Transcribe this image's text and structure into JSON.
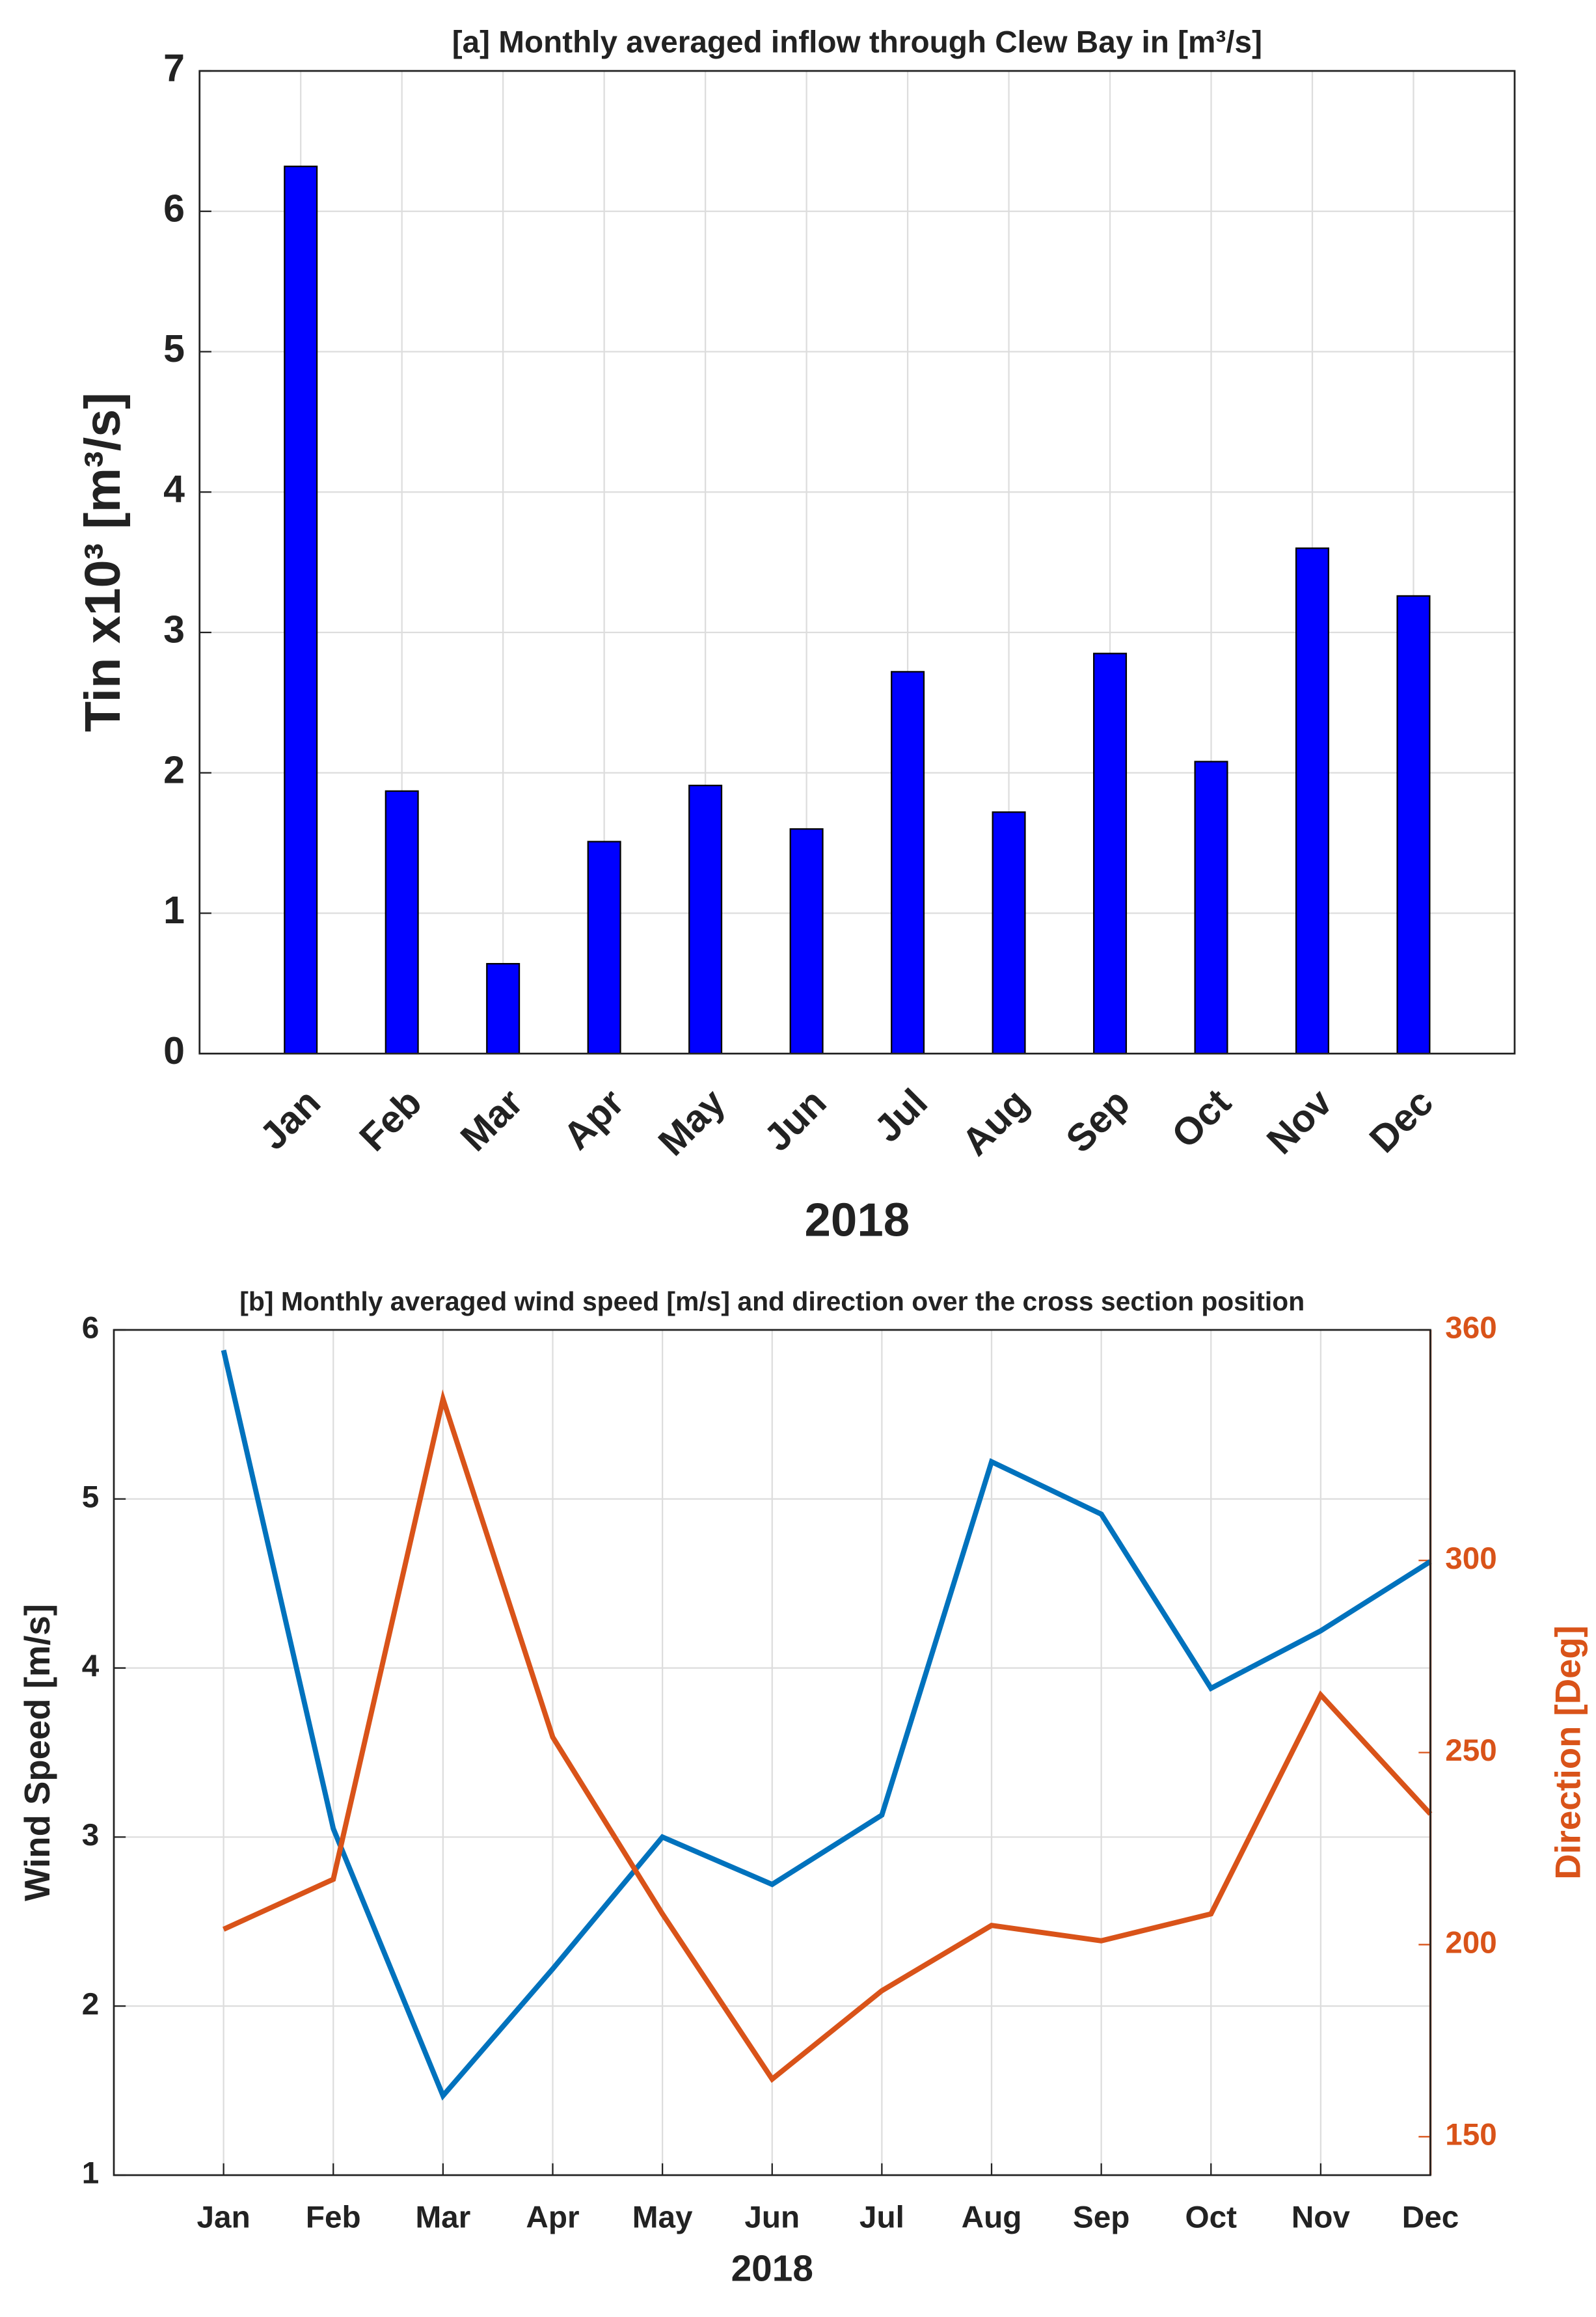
{
  "chart_data": [
    {
      "type": "bar",
      "title": "[a] Monthly averaged inflow through Clew Bay in [m³/s]",
      "xlabel": "2018",
      "ylabel": "Tin x10³ [m³/s]",
      "categories": [
        "Jan",
        "Feb",
        "Mar",
        "Apr",
        "May",
        "Jun",
        "Jul",
        "Aug",
        "Sep",
        "Oct",
        "Nov",
        "Dec"
      ],
      "values": [
        6.32,
        1.87,
        0.64,
        1.51,
        1.91,
        1.6,
        2.72,
        1.72,
        2.85,
        2.08,
        3.6,
        3.26
      ],
      "color": "#0000ff",
      "ylim": [
        0,
        7
      ],
      "yticks": [
        0,
        1,
        2,
        3,
        4,
        5,
        6,
        7
      ],
      "grid": true
    },
    {
      "type": "line",
      "title": "[b] Monthly averaged wind speed [m/s] and direction over the cross section position",
      "xlabel": "2018",
      "ylabel": "Wind Speed [m/s]",
      "y2label": "Direction [Deg]",
      "categories": [
        "Jan",
        "Feb",
        "Mar",
        "Apr",
        "May",
        "Jun",
        "Jul",
        "Aug",
        "Sep",
        "Oct",
        "Nov",
        "Dec"
      ],
      "series": [
        {
          "values": [
            5.88,
            3.05,
            1.47,
            2.22,
            3.0,
            2.72,
            3.13,
            5.22,
            4.91,
            3.88,
            4.22,
            4.63
          ],
          "color": "#0072bd"
        },
        {
          "values": [
            204,
            217,
            342,
            254,
            208,
            165,
            188,
            205,
            201,
            208,
            265,
            234
          ],
          "color": "#d95319",
          "axis": "y2"
        }
      ],
      "ylim": [
        1,
        6
      ],
      "yticks": [
        1,
        2,
        3,
        4,
        5,
        6
      ],
      "y2lim": [
        140,
        360
      ],
      "y2ticks": [
        150,
        200,
        250,
        300,
        360
      ],
      "grid": true
    }
  ]
}
